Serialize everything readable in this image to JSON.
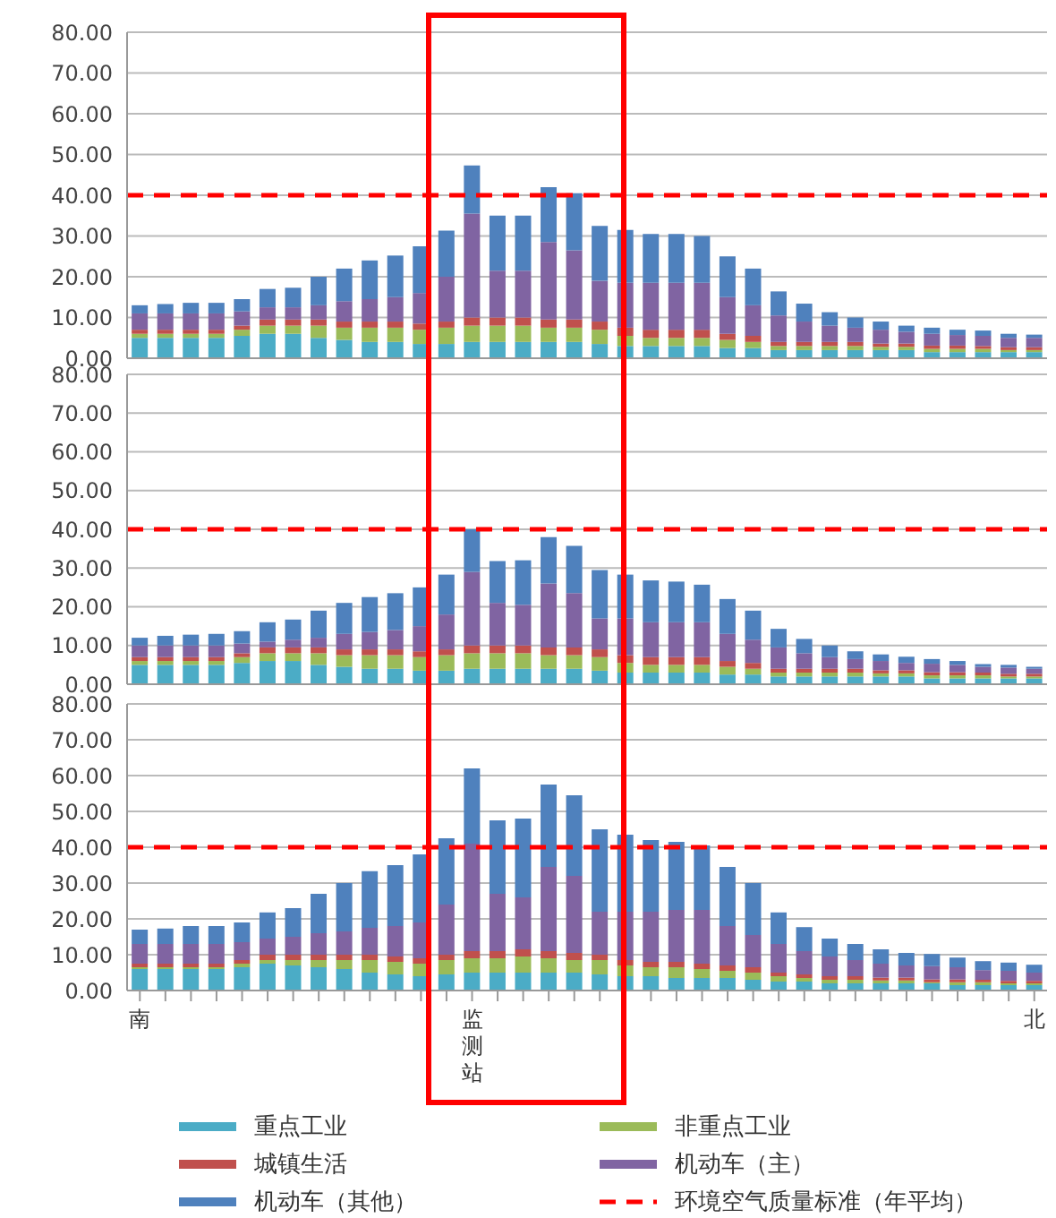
{
  "chart_data": [
    {
      "type": "bar",
      "stacked": true,
      "categories": [
        "南",
        null,
        null,
        null,
        null,
        null,
        null,
        null,
        null,
        null,
        null,
        null,
        null,
        "监测站",
        null,
        null,
        null,
        null,
        null,
        null,
        null,
        null,
        null,
        null,
        null,
        null,
        null,
        null,
        null,
        null,
        null,
        null,
        null,
        null,
        null,
        "北"
      ],
      "series": [
        {
          "color": "#4bacc6",
          "values": [
            5,
            5,
            5,
            5,
            5.5,
            6,
            6,
            5,
            4.5,
            4,
            4,
            3.5,
            3.5,
            4,
            4,
            4,
            4,
            4,
            3.5,
            3,
            3,
            3,
            3,
            2.5,
            2.5,
            2,
            2,
            2,
            2,
            2,
            2,
            1.5,
            1.5,
            1.5,
            1.5,
            1.5
          ]
        },
        {
          "color": "#9bbb59",
          "values": [
            1,
            1,
            1,
            1,
            1.5,
            2,
            2,
            3,
            3,
            3.5,
            3.5,
            3.5,
            4,
            4,
            4,
            4,
            3.5,
            3.5,
            3.5,
            2.5,
            2,
            2,
            2,
            2,
            1.5,
            1,
            1,
            1,
            1,
            0.8,
            0.8,
            0.8,
            0.8,
            0.8,
            0.5,
            0.5
          ]
        },
        {
          "color": "#c0504d",
          "values": [
            1,
            1,
            1,
            1,
            1,
            1.5,
            1.5,
            1.5,
            1.5,
            1.5,
            1.5,
            1.5,
            1.5,
            2,
            2,
            2,
            2,
            2,
            2,
            2,
            2,
            2,
            2,
            1.5,
            1.5,
            1,
            1,
            1,
            1,
            0.8,
            0.8,
            0.8,
            0.8,
            0.7,
            0.7,
            0.7
          ]
        },
        {
          "color": "#8064a2",
          "values": [
            4,
            4,
            4,
            4,
            3.5,
            3,
            3,
            3.5,
            5,
            5.5,
            6,
            7.5,
            11,
            25.5,
            11.5,
            11.5,
            19,
            17,
            10,
            11,
            11.5,
            11.5,
            11.5,
            9,
            7.5,
            6.5,
            5,
            4,
            3.5,
            3.4,
            2.9,
            2.9,
            2.6,
            2.5,
            2.3,
            2.3
          ]
        },
        {
          "color": "#4f81bd",
          "values": [
            2,
            2.3,
            2.6,
            2.6,
            3,
            4.5,
            4.8,
            7,
            8,
            9.5,
            10.2,
            11.5,
            11.3,
            11.8,
            13.5,
            13.5,
            13.5,
            14,
            13.5,
            13,
            12,
            12,
            11.5,
            10,
            9,
            5.9,
            4.4,
            3.3,
            2.5,
            2,
            1.5,
            1.5,
            1.3,
            1.3,
            1,
            0.8
          ]
        }
      ],
      "ylim": [
        0,
        80
      ],
      "yticks": [
        {
          "value": 0,
          "label": "0.00"
        },
        {
          "value": 10,
          "label": "10.00"
        },
        {
          "value": 20,
          "label": "20.00"
        },
        {
          "value": 30,
          "label": "30.00"
        },
        {
          "value": 40,
          "label": "40.00"
        },
        {
          "value": 50,
          "label": "50.00"
        },
        {
          "value": 60,
          "label": "60.00"
        },
        {
          "value": 70,
          "label": "70.00"
        },
        {
          "value": 80,
          "label": "80.00"
        }
      ],
      "grid": "y",
      "tick_labels": "y",
      "ref_lines": [
        {
          "axis": "y",
          "value": 40,
          "color": "#ff0000",
          "line_style": "dashed"
        }
      ]
    },
    {
      "type": "bar",
      "stacked": true,
      "categories": [
        "南",
        null,
        null,
        null,
        null,
        null,
        null,
        null,
        null,
        null,
        null,
        null,
        null,
        "监测站",
        null,
        null,
        null,
        null,
        null,
        null,
        null,
        null,
        null,
        null,
        null,
        null,
        null,
        null,
        null,
        null,
        null,
        null,
        null,
        null,
        null,
        "北"
      ],
      "series": [
        {
          "color": "#4bacc6",
          "values": [
            5,
            5,
            5,
            5,
            5.5,
            6,
            6,
            5,
            4.5,
            4,
            4,
            3.5,
            3.5,
            4,
            4,
            4,
            4,
            4,
            3.5,
            3,
            3,
            3,
            3,
            2.5,
            2.5,
            2,
            2,
            2,
            2,
            2,
            2,
            1.5,
            1.5,
            1.5,
            1.5,
            1.5
          ]
        },
        {
          "color": "#9bbb59",
          "values": [
            1,
            1,
            1,
            1,
            1.5,
            2,
            2,
            3,
            3,
            3.5,
            3.5,
            3.5,
            4,
            4,
            4,
            4,
            3.5,
            3.5,
            3.5,
            2.5,
            2,
            2,
            2,
            2,
            1.5,
            1,
            1,
            1,
            1,
            0.8,
            0.8,
            0.8,
            0.8,
            0.8,
            0.5,
            0.5
          ]
        },
        {
          "color": "#c0504d",
          "values": [
            1,
            1,
            1,
            1,
            1,
            1.5,
            1.5,
            1.5,
            1.5,
            1.5,
            1.5,
            1.5,
            1.5,
            2,
            2,
            2,
            2,
            2,
            2,
            2,
            2,
            2,
            2,
            1.5,
            1.5,
            1,
            1,
            1,
            1,
            0.8,
            0.8,
            0.8,
            0.8,
            0.7,
            0.7,
            0.7
          ]
        },
        {
          "color": "#8064a2",
          "values": [
            3,
            3,
            3,
            3,
            2.5,
            1.5,
            2,
            2.5,
            4,
            4.5,
            5,
            6.5,
            9,
            19,
            11,
            10.5,
            16.5,
            14,
            8,
            9.5,
            9,
            9,
            9,
            7,
            6,
            5.5,
            4,
            3,
            2.5,
            2.4,
            1.9,
            2.2,
            1.9,
            1.5,
            1.6,
            1.3
          ]
        },
        {
          "color": "#4f81bd",
          "values": [
            2,
            2.5,
            2.8,
            3,
            3.2,
            5,
            5.2,
            7,
            8,
            9,
            9.5,
            10,
            10.3,
            11,
            10.8,
            11.5,
            12,
            12.2,
            12.5,
            11.3,
            10.8,
            10.5,
            9.7,
            9,
            7.5,
            4.8,
            3.7,
            3,
            2,
            1.7,
            1.6,
            1.2,
            1,
            0.7,
            0.7,
            0.5
          ]
        }
      ],
      "ylim": [
        0,
        80
      ],
      "yticks": [
        {
          "value": 0,
          "label": "0.00"
        },
        {
          "value": 10,
          "label": "10.00"
        },
        {
          "value": 20,
          "label": "20.00"
        },
        {
          "value": 30,
          "label": "30.00"
        },
        {
          "value": 40,
          "label": "40.00"
        },
        {
          "value": 50,
          "label": "50.00"
        },
        {
          "value": 60,
          "label": "60.00"
        },
        {
          "value": 70,
          "label": "70.00"
        },
        {
          "value": 80,
          "label": "80.00"
        }
      ],
      "grid": "y",
      "tick_labels": "y",
      "ref_lines": [
        {
          "axis": "y",
          "value": 40,
          "color": "#ff0000",
          "line_style": "dashed"
        }
      ]
    },
    {
      "type": "bar",
      "stacked": true,
      "categories": [
        "南",
        null,
        null,
        null,
        null,
        null,
        null,
        null,
        null,
        null,
        null,
        null,
        null,
        "监测站",
        null,
        null,
        null,
        null,
        null,
        null,
        null,
        null,
        null,
        null,
        null,
        null,
        null,
        null,
        null,
        null,
        null,
        null,
        null,
        null,
        null,
        "北"
      ],
      "series": [
        {
          "name": "重点工业",
          "color": "#4bacc6",
          "values": [
            6,
            6,
            6,
            6,
            6.5,
            7.5,
            7,
            6.5,
            6,
            5,
            4.5,
            4,
            4.5,
            5,
            5,
            5,
            5,
            5,
            4.5,
            4,
            4,
            3.5,
            3.5,
            3.5,
            3,
            2.5,
            2.5,
            2,
            2,
            2,
            2,
            2,
            1.5,
            1.5,
            1.5,
            1.5
          ]
        },
        {
          "name": "非重点工业",
          "color": "#9bbb59",
          "values": [
            0.5,
            0.5,
            0.5,
            0.5,
            1,
            1,
            1.5,
            2,
            2.5,
            3.5,
            3.5,
            3.5,
            4,
            4,
            4,
            4.5,
            4,
            3.5,
            4,
            3,
            2.5,
            3,
            2.5,
            2,
            2,
            1.5,
            1,
            1,
            1,
            0.8,
            0.8,
            0.3,
            0.8,
            0.8,
            0.5,
            0.5
          ]
        },
        {
          "name": "城镇生活",
          "color": "#c0504d",
          "values": [
            1,
            1,
            1,
            1,
            1,
            1.5,
            1.5,
            1.5,
            1.5,
            1.5,
            1.5,
            1.5,
            1.5,
            2,
            2,
            2,
            2,
            2,
            1.5,
            1.5,
            1.5,
            1.5,
            1.5,
            1.5,
            1.5,
            1,
            1,
            1,
            1,
            0.8,
            0.8,
            0.8,
            0.8,
            0.7,
            0.7,
            0.7
          ]
        },
        {
          "name": "机动车（主）",
          "color": "#8064a2",
          "values": [
            5.5,
            5.5,
            5.5,
            5.5,
            5,
            4.5,
            5,
            6,
            6.5,
            7.5,
            8.5,
            10,
            14,
            30,
            16,
            14.5,
            23.5,
            21.5,
            12,
            13.5,
            14,
            14.5,
            15,
            11,
            9,
            8,
            6.5,
            5.5,
            4.5,
            3.9,
            3.4,
            3.7,
            3.4,
            2.7,
            2.8,
            2.3
          ]
        },
        {
          "name": "机动车（其他）",
          "color": "#4f81bd",
          "values": [
            4,
            4.3,
            5,
            5,
            5.5,
            7.3,
            8,
            11,
            13.5,
            15.8,
            17,
            19,
            18.5,
            21,
            20.5,
            22,
            23,
            22.5,
            23,
            21.5,
            20,
            19,
            18,
            16.5,
            14.5,
            8.8,
            6.7,
            5,
            4.5,
            4,
            3.5,
            3.4,
            2.7,
            2.5,
            2.3,
            2.2
          ]
        }
      ],
      "ylim": [
        0,
        80
      ],
      "yticks": [
        {
          "value": 0,
          "label": "0.00"
        },
        {
          "value": 10,
          "label": "10.00"
        },
        {
          "value": 20,
          "label": "20.00"
        },
        {
          "value": 30,
          "label": "30.00"
        },
        {
          "value": 40,
          "label": "40.00"
        },
        {
          "value": 50,
          "label": "50.00"
        },
        {
          "value": 60,
          "label": "60.00"
        },
        {
          "value": 70,
          "label": "70.00"
        },
        {
          "value": 80,
          "label": "80.00"
        }
      ],
      "grid": "y",
      "legend": "bottom",
      "ref_lines": [
        {
          "axis": "y",
          "value": 40,
          "label": "环境空气质量标准（年平均）",
          "color": "#ff0000",
          "line_style": "dashed"
        }
      ]
    }
  ]
}
